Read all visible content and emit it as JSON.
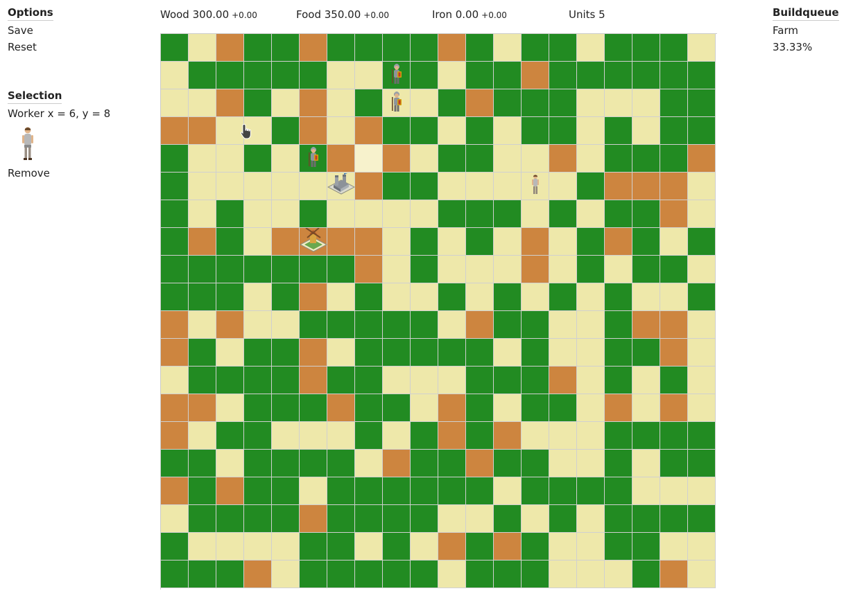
{
  "options": {
    "title": "Options",
    "items": [
      "Save",
      "Reset"
    ]
  },
  "selection": {
    "title": "Selection",
    "text": "Worker x = 6, y = 8",
    "portrait_icon": "worker-portrait-icon",
    "remove_label": "Remove"
  },
  "resources": [
    {
      "name": "Wood",
      "value": "300.00",
      "delta": "+0.00"
    },
    {
      "name": "Food",
      "value": "350.00",
      "delta": "+0.00"
    },
    {
      "name": "Iron",
      "value": "0.00",
      "delta": "+0.00"
    }
  ],
  "units": {
    "label": "Units",
    "count": "5"
  },
  "buildqueue": {
    "title": "Buildqueue",
    "item": "Farm",
    "progress": "33.33%"
  },
  "map": {
    "terrain_legend": {
      "G": "grass",
      "S": "sand",
      "I": "iron",
      "H": "highlighted-sand"
    },
    "terrain_colors": {
      "G": "#228b22",
      "S": "#eee8aa",
      "I": "#cd853f",
      "H": "#f7f2cc"
    },
    "rows": [
      "GSIGGIGGGGIGSGGSGGGS",
      "SGGGGGSSGGSGGIGGGGGG",
      "SSIGSISGSSGIGGGSSSGG",
      "IISSGISIGGSGSGGSGSGG",
      "GSSGSGIHISGGSSISGGGI",
      "GSSSSSSIGGSSSSSGIIIS",
      "GSGSSGSSSSGGGSGSGGIS",
      "GIGSIIIISGSGSISGIGSG",
      "GGGGGGGISGSSSISGSGGS",
      "GGGSGISGSSGSGSGSGSSG",
      "ISISSGGGGGSIGGSSGIIS",
      "IGSGGISGGGGGSGSSGGIS",
      "SGGGGIGGSSSGGGISGSGS",
      "IISGGGIGGSIGSGGSISIS",
      "ISGGSSSGSGIGISSSGGGG",
      "GGSGGGGSIGGIGGSSGSGG",
      "IGIGGSGGGGGGSGGGGSSS",
      "SGGGGIGGGGSSGSGSGGGG",
      "GSSSSGGSGSIGIGSSGGSS",
      "GGGISGGGGGSGGGSSSGIS"
    ],
    "units": [
      {
        "type": "soldier",
        "row": 1,
        "col": 8
      },
      {
        "type": "soldier",
        "row": 2,
        "col": 8
      },
      {
        "type": "soldier",
        "row": 4,
        "col": 5
      },
      {
        "type": "worker",
        "row": 5,
        "col": 13
      }
    ],
    "buildings": [
      {
        "type": "barracks",
        "row": 5,
        "col": 6
      },
      {
        "type": "farm",
        "row": 7,
        "col": 5
      }
    ]
  }
}
